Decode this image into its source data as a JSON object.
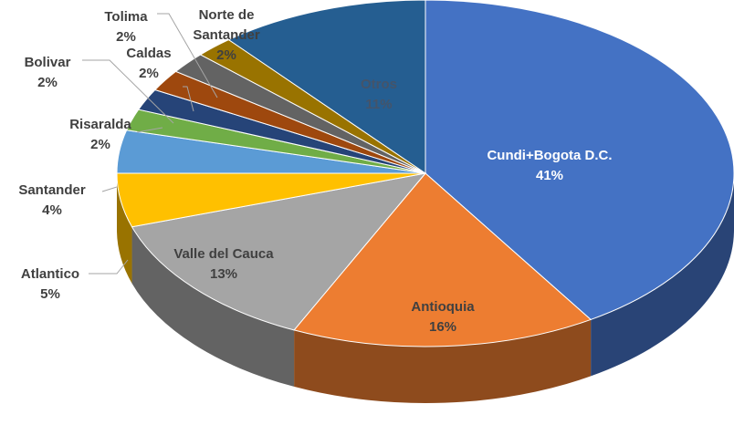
{
  "chart_data": {
    "type": "pie3d",
    "categories": [
      "Cundi+Bogota D.C.",
      "Antioquia",
      "Valle del Cauca",
      "Atlantico",
      "Santander",
      "Risaralda",
      "Bolivar",
      "Caldas",
      "Tolima",
      "Norte de Santander",
      "Otros"
    ],
    "values": [
      41,
      16,
      13,
      5,
      4,
      2,
      2,
      2,
      2,
      2,
      11
    ],
    "value_labels": [
      "41%",
      "16%",
      "13%",
      "5%",
      "4%",
      "2%",
      "2%",
      "2%",
      "2%",
      "2%",
      "11%"
    ],
    "colors": [
      "#4472c4",
      "#ed7d31",
      "#a5a5a5",
      "#ffc000",
      "#5b9bd5",
      "#70ad47",
      "#264478",
      "#9e480e",
      "#636363",
      "#997300",
      "#255e91"
    ]
  }
}
